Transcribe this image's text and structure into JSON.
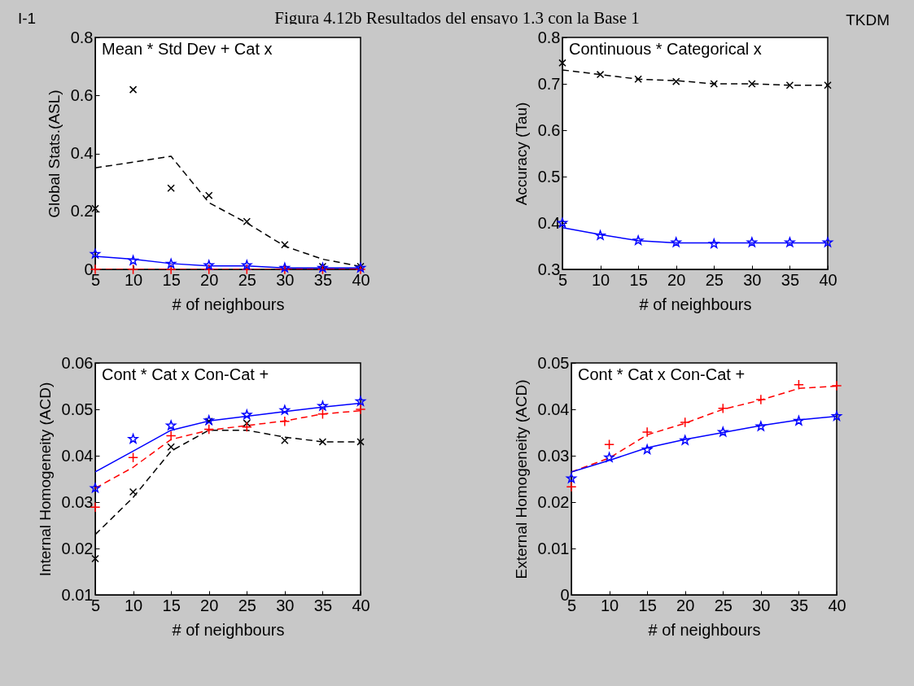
{
  "chart_data": [
    {
      "type": "line",
      "title": "Figura 4.12b Resultados del ensayo 1.3 con la Base 1",
      "annotations": [
        "Mean *  Std Dev +  Cat x",
        "I-1",
        "TKDM"
      ],
      "xlabel": "# of neighbours",
      "ylabel": "Global Stats.(ASL)",
      "x": [
        5,
        10,
        15,
        20,
        25,
        30,
        35,
        40
      ],
      "xlim": [
        5,
        40
      ],
      "xticks": [
        5,
        10,
        15,
        20,
        25,
        30,
        35,
        40
      ],
      "ylim": [
        0,
        0.8
      ],
      "yticks": [
        0,
        0.2,
        0.4,
        0.6,
        0.8
      ],
      "series": [
        {
          "type": "line",
          "color": "#000000",
          "line_style": "dashed",
          "values": [
            0.35,
            0.37,
            0.39,
            0.23,
            0.16,
            0.08,
            0.035,
            0.01
          ]
        },
        {
          "type": "line",
          "color": "#ff0000",
          "line_style": "dashed",
          "values": [
            0,
            0,
            0,
            0,
            0,
            0,
            0,
            0
          ]
        },
        {
          "type": "line",
          "color": "#0000ff",
          "line_style": "solid",
          "values": [
            0.045,
            0.035,
            0.02,
            0.012,
            0.012,
            0.005,
            0.005,
            0.005
          ]
        },
        {
          "type": "scatter",
          "color": "#000000",
          "marker": "x",
          "values": [
            0.21,
            0.62,
            0.28,
            0.255,
            0.165,
            0.085,
            0.01,
            0.01
          ]
        },
        {
          "type": "scatter",
          "color": "#ff0000",
          "marker": "cross",
          "values": [
            0,
            0,
            0,
            0,
            0,
            0,
            0,
            0
          ]
        },
        {
          "type": "scatter",
          "color": "#0000ff",
          "marker": "star",
          "values": [
            0.053,
            0.03,
            0.019,
            0.014,
            0.014,
            0.005,
            0.005,
            0.005
          ]
        }
      ]
    },
    {
      "type": "line",
      "annotations": [
        "Continuous *  Categorical x"
      ],
      "xlabel": "# of neighbours",
      "ylabel": "Accuracy (Tau)",
      "x": [
        5,
        10,
        15,
        20,
        25,
        30,
        35,
        40
      ],
      "xlim": [
        5,
        40
      ],
      "xticks": [
        5,
        10,
        15,
        20,
        25,
        30,
        35,
        40
      ],
      "ylim": [
        0.3,
        0.8
      ],
      "yticks": [
        0.3,
        0.4,
        0.5,
        0.6,
        0.7,
        0.8
      ],
      "series": [
        {
          "type": "line",
          "color": "#000000",
          "line_style": "dashed",
          "values": [
            0.73,
            0.72,
            0.71,
            0.707,
            0.7,
            0.7,
            0.697,
            0.697
          ]
        },
        {
          "type": "line",
          "color": "#0000ff",
          "line_style": "solid",
          "values": [
            0.39,
            0.375,
            0.362,
            0.357,
            0.357,
            0.357,
            0.357,
            0.357
          ]
        },
        {
          "type": "scatter",
          "color": "#000000",
          "marker": "x",
          "values": [
            0.745,
            0.72,
            0.71,
            0.705,
            0.7,
            0.7,
            0.697,
            0.697
          ]
        },
        {
          "type": "scatter",
          "color": "#0000ff",
          "marker": "star",
          "values": [
            0.4,
            0.373,
            0.362,
            0.358,
            0.355,
            0.358,
            0.358,
            0.358
          ]
        }
      ]
    },
    {
      "type": "line",
      "annotations": [
        "Cont *  Cat x  Con-Cat +"
      ],
      "xlabel": "# of neighbours",
      "ylabel": "Internal Homogeneity (ACD)",
      "x": [
        5,
        10,
        15,
        20,
        25,
        30,
        35,
        40
      ],
      "xlim": [
        5,
        40
      ],
      "xticks": [
        5,
        10,
        15,
        20,
        25,
        30,
        35,
        40
      ],
      "ylim": [
        0.01,
        0.06
      ],
      "yticks": [
        0.01,
        0.02,
        0.03,
        0.04,
        0.05,
        0.06
      ],
      "series": [
        {
          "type": "line",
          "color": "#000000",
          "line_style": "dashed",
          "values": [
            0.023,
            0.031,
            0.041,
            0.0455,
            0.0455,
            0.044,
            0.043,
            0.043
          ]
        },
        {
          "type": "line",
          "color": "#ff0000",
          "line_style": "dashed",
          "values": [
            0.033,
            0.0375,
            0.0435,
            0.0455,
            0.0465,
            0.0475,
            0.049,
            0.0497
          ]
        },
        {
          "type": "line",
          "color": "#0000ff",
          "line_style": "solid",
          "values": [
            0.0365,
            0.041,
            0.0455,
            0.0475,
            0.0485,
            0.0495,
            0.0505,
            0.0513
          ]
        },
        {
          "type": "scatter",
          "color": "#000000",
          "marker": "x",
          "values": [
            0.0178,
            0.0322,
            0.0419,
            0.0474,
            0.047,
            0.0433,
            0.043,
            0.043
          ]
        },
        {
          "type": "scatter",
          "color": "#ff0000",
          "marker": "cross",
          "values": [
            0.0289,
            0.0396,
            0.0443,
            0.0457,
            0.0462,
            0.0474,
            0.049,
            0.05
          ]
        },
        {
          "type": "scatter",
          "color": "#0000ff",
          "marker": "star",
          "values": [
            0.033,
            0.0436,
            0.0465,
            0.0476,
            0.0488,
            0.0498,
            0.0507,
            0.0517
          ]
        }
      ]
    },
    {
      "type": "line",
      "annotations": [
        "Cont *  Cat x  Con-Cat +"
      ],
      "xlabel": "# of neighbours",
      "ylabel": "External Homogeneity (ACD)",
      "x": [
        5,
        10,
        15,
        20,
        25,
        30,
        35,
        40
      ],
      "xlim": [
        5,
        40
      ],
      "xticks": [
        5,
        10,
        15,
        20,
        25,
        30,
        35,
        40
      ],
      "ylim": [
        0,
        0.05
      ],
      "yticks": [
        0,
        0.01,
        0.02,
        0.03,
        0.04,
        0.05
      ],
      "series": [
        {
          "type": "line",
          "color": "#ff0000",
          "line_style": "dashed",
          "values": [
            0.0265,
            0.0295,
            0.0345,
            0.037,
            0.04,
            0.042,
            0.0445,
            0.045
          ]
        },
        {
          "type": "line",
          "color": "#0000ff",
          "line_style": "solid",
          "values": [
            0.0265,
            0.029,
            0.0317,
            0.0335,
            0.035,
            0.0365,
            0.0377,
            0.0385
          ]
        },
        {
          "type": "scatter",
          "color": "#ff0000",
          "marker": "cross",
          "values": [
            0.0233,
            0.0324,
            0.0351,
            0.0372,
            0.0402,
            0.0421,
            0.0453,
            0.0451
          ]
        },
        {
          "type": "scatter",
          "color": "#0000ff",
          "marker": "star",
          "values": [
            0.0251,
            0.0296,
            0.0313,
            0.0333,
            0.0351,
            0.0363,
            0.0375,
            0.0385
          ]
        }
      ]
    }
  ]
}
